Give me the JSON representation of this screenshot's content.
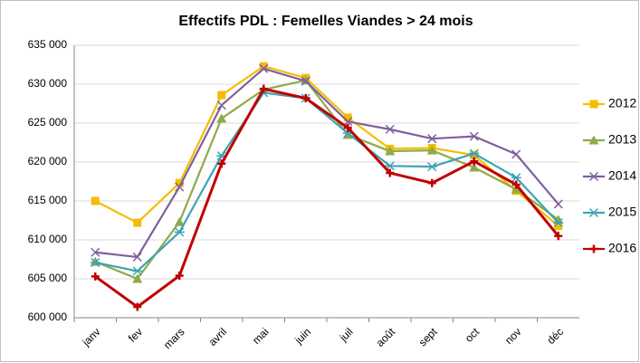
{
  "chart_data": {
    "type": "line",
    "title": "Effectifs PDL : Femelles Viandes > 24 mois",
    "categories": [
      "janv",
      "fev",
      "mars",
      "avril",
      "mai",
      "juin",
      "juil",
      "août",
      "sept",
      "oct",
      "nov",
      "déc"
    ],
    "series": [
      {
        "name": "2012",
        "color": "#f5bd00",
        "marker": "square",
        "values": [
          615000,
          612200,
          617300,
          628600,
          632300,
          630800,
          625700,
          621700,
          621800,
          620900,
          616300,
          611800
        ]
      },
      {
        "name": "2013",
        "color": "#8faa4a",
        "marker": "triangle",
        "values": [
          607200,
          605000,
          612300,
          625600,
          629300,
          630500,
          623500,
          621400,
          621500,
          619300,
          616500,
          612600
        ]
      },
      {
        "name": "2014",
        "color": "#7f5f9f",
        "marker": "x",
        "values": [
          608400,
          607800,
          616800,
          627300,
          632000,
          630400,
          625200,
          624200,
          623000,
          623300,
          621000,
          614600
        ]
      },
      {
        "name": "2015",
        "color": "#3fa3b4",
        "marker": "star",
        "values": [
          607100,
          606000,
          611000,
          620800,
          628900,
          628200,
          623700,
          619500,
          619400,
          621100,
          618000,
          612200
        ]
      },
      {
        "name": "2016",
        "color": "#c00000",
        "marker": "plus",
        "values": [
          605300,
          601400,
          605400,
          619800,
          629400,
          628200,
          624400,
          618600,
          617300,
          620100,
          617100,
          610500
        ]
      }
    ],
    "ylim": [
      600000,
      635000
    ],
    "yticks": [
      {
        "value": 600000,
        "label": "600 000"
      },
      {
        "value": 605000,
        "label": "605 000"
      },
      {
        "value": 610000,
        "label": "610 000"
      },
      {
        "value": 615000,
        "label": "615 000"
      },
      {
        "value": 620000,
        "label": "620 000"
      },
      {
        "value": 625000,
        "label": "625 000"
      },
      {
        "value": 630000,
        "label": "630 000"
      },
      {
        "value": 635000,
        "label": "635 000"
      }
    ],
    "grid": true,
    "legend": "right"
  }
}
